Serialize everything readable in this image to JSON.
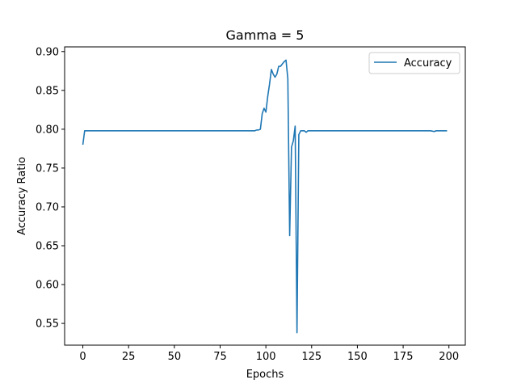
{
  "chart_data": {
    "type": "line",
    "title": "Gamma = 5",
    "xlabel": "Epochs",
    "ylabel": "Accuracy Ratio",
    "xlim": [
      -9.95,
      208.95
    ],
    "ylim": [
      0.522,
      0.906
    ],
    "xticks": [
      0,
      25,
      50,
      75,
      100,
      125,
      150,
      175,
      200
    ],
    "xtick_labels": [
      "0",
      "25",
      "50",
      "75",
      "100",
      "125",
      "150",
      "175",
      "200"
    ],
    "yticks": [
      0.55,
      0.6,
      0.65,
      0.7,
      0.75,
      0.8,
      0.85,
      0.9
    ],
    "ytick_labels": [
      "0.55",
      "0.60",
      "0.65",
      "0.70",
      "0.75",
      "0.80",
      "0.85",
      "0.90"
    ],
    "grid": false,
    "legend_position": "top-right",
    "series": [
      {
        "name": "Accuracy",
        "color": "#1f77b4",
        "points": [
          [
            0,
            0.78
          ],
          [
            1,
            0.798
          ],
          [
            2,
            0.798
          ],
          [
            10,
            0.798
          ],
          [
            20,
            0.798
          ],
          [
            30,
            0.798
          ],
          [
            40,
            0.798
          ],
          [
            50,
            0.798
          ],
          [
            60,
            0.798
          ],
          [
            70,
            0.798
          ],
          [
            80,
            0.798
          ],
          [
            90,
            0.798
          ],
          [
            93,
            0.798
          ],
          [
            94,
            0.798
          ],
          [
            95,
            0.799
          ],
          [
            96,
            0.799
          ],
          [
            97,
            0.8
          ],
          [
            98,
            0.82
          ],
          [
            99,
            0.827
          ],
          [
            100,
            0.822
          ],
          [
            101,
            0.842
          ],
          [
            102,
            0.858
          ],
          [
            103,
            0.877
          ],
          [
            104,
            0.871
          ],
          [
            105,
            0.867
          ],
          [
            106,
            0.871
          ],
          [
            107,
            0.881
          ],
          [
            108,
            0.881
          ],
          [
            109,
            0.884
          ],
          [
            110,
            0.887
          ],
          [
            111,
            0.889
          ],
          [
            112,
            0.865
          ],
          [
            113,
            0.663
          ],
          [
            114,
            0.777
          ],
          [
            115,
            0.785
          ],
          [
            116,
            0.804
          ],
          [
            117,
            0.538
          ],
          [
            118,
            0.793
          ],
          [
            119,
            0.798
          ],
          [
            120,
            0.798
          ],
          [
            121,
            0.798
          ],
          [
            122,
            0.796
          ],
          [
            123,
            0.798
          ],
          [
            124,
            0.798
          ],
          [
            130,
            0.798
          ],
          [
            140,
            0.798
          ],
          [
            150,
            0.798
          ],
          [
            160,
            0.798
          ],
          [
            170,
            0.798
          ],
          [
            180,
            0.798
          ],
          [
            190,
            0.798
          ],
          [
            192,
            0.797
          ],
          [
            193,
            0.798
          ],
          [
            199,
            0.798
          ]
        ]
      }
    ]
  }
}
